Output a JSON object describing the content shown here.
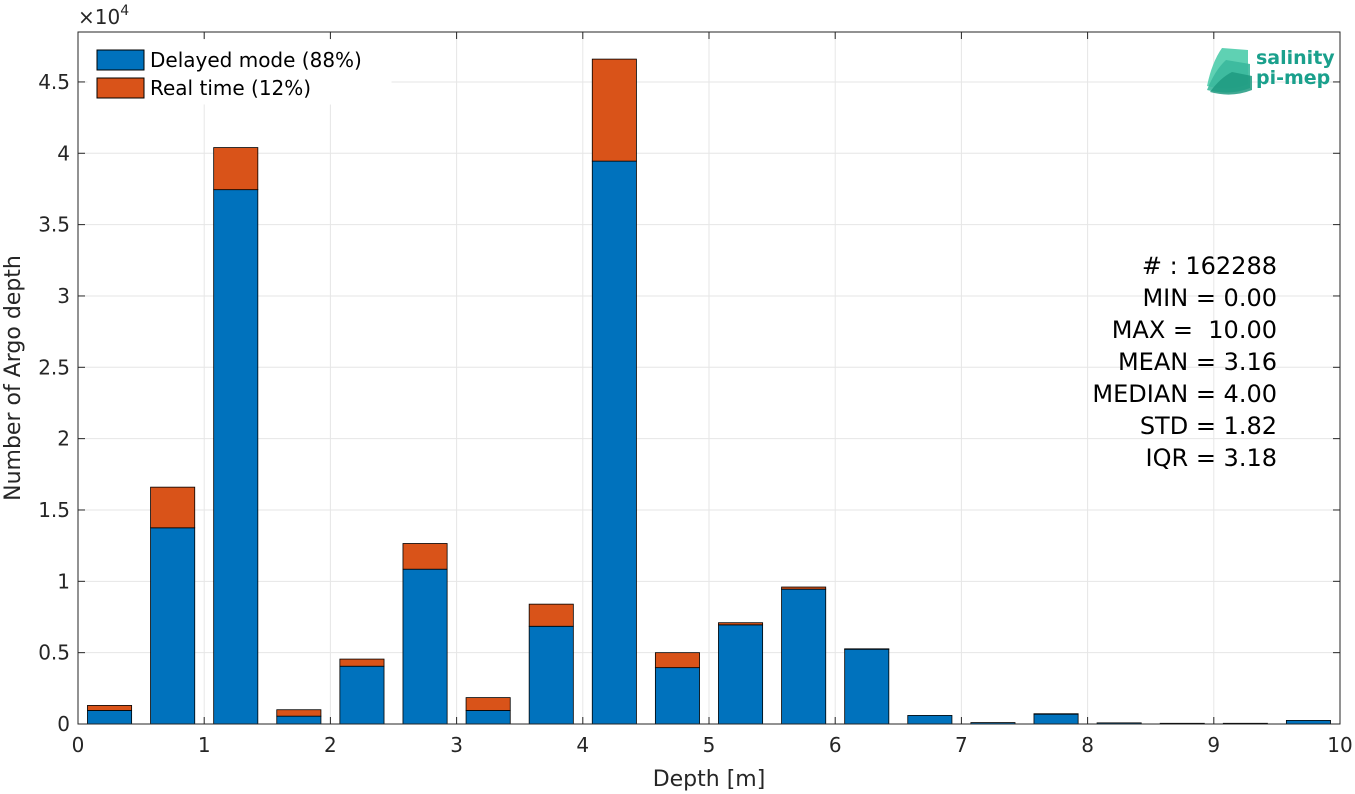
{
  "chart_data": {
    "type": "bar",
    "stacked": true,
    "x": [
      0.25,
      0.75,
      1.25,
      1.75,
      2.25,
      2.75,
      3.25,
      3.75,
      4.25,
      4.75,
      5.25,
      5.75,
      6.25,
      6.75,
      7.25,
      7.75,
      8.25,
      8.75,
      9.25,
      9.75
    ],
    "series": [
      {
        "name": "Delayed mode (88%)",
        "color": "#0072bd",
        "values": [
          950,
          13750,
          37450,
          550,
          4050,
          10850,
          950,
          6850,
          39450,
          3950,
          6950,
          9450,
          5250,
          600,
          100,
          700,
          80,
          50,
          50,
          250
        ]
      },
      {
        "name": "Real time (12%)",
        "color": "#d95319",
        "values": [
          350,
          2850,
          2950,
          450,
          500,
          1800,
          900,
          1550,
          7150,
          1050,
          150,
          150,
          20,
          0,
          0,
          20,
          0,
          0,
          0,
          0
        ]
      }
    ],
    "xlabel": "Depth [m]",
    "ylabel": "Number of Argo depth",
    "xlim": [
      0,
      10
    ],
    "ylim": [
      0,
      48500
    ],
    "xticks": [
      0,
      1,
      2,
      3,
      4,
      5,
      6,
      7,
      8,
      9,
      10
    ],
    "yticks": [
      0,
      5000,
      10000,
      15000,
      20000,
      25000,
      30000,
      35000,
      40000,
      45000
    ],
    "ytick_labels": [
      "0",
      "0.5",
      "1",
      "1.5",
      "2",
      "2.5",
      "3",
      "3.5",
      "4",
      "4.5"
    ],
    "y_multiplier": "×10",
    "y_multiplier_exp": "4",
    "grid": true,
    "legend_position": "top-left",
    "stats": [
      "# : 162288",
      "MIN = 0.00",
      "MAX =  10.00",
      "MEAN = 3.16",
      "MEDIAN = 4.00",
      "STD = 1.82",
      "IQR = 3.18"
    ]
  },
  "logo": {
    "line1": "salinity",
    "line2": "pi-mep"
  }
}
